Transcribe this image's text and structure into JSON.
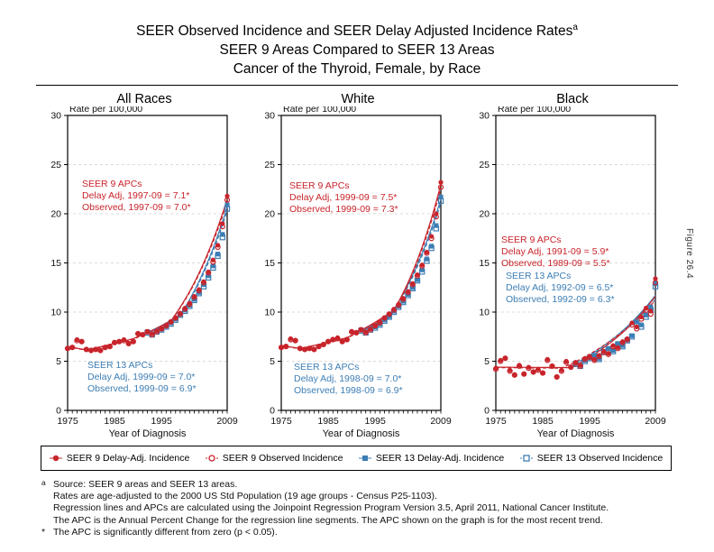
{
  "title": {
    "line1": "SEER Observed Incidence and SEER Delay Adjusted Incidence Rates",
    "superscript": "a",
    "line2": "SEER 9 Areas Compared to SEER 13 Areas",
    "line3": "Cancer of the Thyroid, Female, by Race"
  },
  "figure_label": "Figure 26.4",
  "colors": {
    "seer9": "#C8242B",
    "seer13": "#3D7EB4",
    "grid": "#CFCFCF",
    "axis": "#000000"
  },
  "axis": {
    "y_label": "Rate per 100,000",
    "x_label": "Year of Diagnosis",
    "y_ticks": [
      0,
      5,
      10,
      15,
      20,
      25,
      30
    ],
    "x_tick_labels": [
      1975,
      1985,
      1995,
      2009
    ],
    "x_range": [
      1975,
      2009
    ],
    "y_range": [
      0,
      30
    ]
  },
  "legend": [
    {
      "label": "SEER 9 Delay-Adj. Incidence",
      "marker": "filled-circle",
      "color": "#C8242B"
    },
    {
      "label": "SEER 9 Observed Incidence",
      "marker": "open-circle",
      "color": "#C8242B"
    },
    {
      "label": "SEER 13 Delay-Adj. Incidence",
      "marker": "filled-square",
      "color": "#3D7EB4"
    },
    {
      "label": "SEER 13 Observed Incidence",
      "marker": "open-square",
      "color": "#3D7EB4"
    }
  ],
  "footnotes": {
    "source_marker": "a",
    "lines": [
      "Source: SEER 9 areas and SEER 13 areas.",
      "Rates are age-adjusted to the 2000 US Std Population (19 age groups - Census P25-1103).",
      "Regression lines and APCs are calculated using the Joinpoint Regression Program Version 3.5, April 2011, National Cancer Institute.",
      "The APC is the Annual Percent Change for the regression line segments. The APC shown on the graph is for the most recent trend."
    ],
    "star_marker": "*",
    "star_line": "The APC is significantly different from zero (p < 0.05)."
  },
  "chart_data": [
    {
      "type": "scatter",
      "title": "All Races",
      "xlabel": "Year of Diagnosis",
      "ylabel": "Rate per 100,000",
      "xlim": [
        1975,
        2009
      ],
      "ylim": [
        0,
        30
      ],
      "annotations": {
        "seer9": [
          "SEER 9 APCs",
          "Delay Adj, 1997-09 = 7.1*",
          "Observed, 1997-09 = 7.0*"
        ],
        "seer13": [
          "SEER 13 APCs",
          "Delay Adj, 1999-09 = 7.0*",
          "Observed, 1999-09 = 6.9*"
        ]
      },
      "series": [
        {
          "name": "SEER 9 Delay-Adj. Incidence",
          "start_year": 1975,
          "values": [
            6.3,
            6.4,
            7.2,
            7.0,
            6.2,
            6.1,
            6.2,
            6.1,
            6.4,
            6.5,
            6.9,
            7.0,
            7.2,
            6.8,
            7.0,
            7.8,
            7.7,
            8.0,
            7.8,
            8.1,
            8.3,
            8.7,
            9.0,
            9.4,
            9.9,
            10.4,
            10.9,
            11.6,
            12.3,
            13.1,
            14.1,
            15.3,
            16.8,
            19.0,
            21.8
          ],
          "trend": [
            [
              1975,
              6.5
            ],
            [
              1979,
              6.15
            ],
            [
              1989,
              7.3
            ],
            [
              1997,
              9.1
            ],
            [
              2009,
              21.5
            ]
          ]
        },
        {
          "name": "SEER 9 Observed Incidence",
          "start_year": 1975,
          "values": [
            6.3,
            6.4,
            7.1,
            7.0,
            6.2,
            6.1,
            6.2,
            6.1,
            6.4,
            6.5,
            6.9,
            7.0,
            7.1,
            6.8,
            7.0,
            7.8,
            7.7,
            8.0,
            7.7,
            8.0,
            8.3,
            8.6,
            9.0,
            9.4,
            9.8,
            10.3,
            10.8,
            11.5,
            12.2,
            13.0,
            14.0,
            15.1,
            16.6,
            18.7,
            21.4
          ],
          "trend": [
            [
              1975,
              6.5
            ],
            [
              1979,
              6.1
            ],
            [
              1989,
              7.25
            ],
            [
              1997,
              9.05
            ],
            [
              2009,
              21.2
            ]
          ]
        },
        {
          "name": "SEER 13 Delay-Adj. Incidence",
          "start_year": 1992,
          "values": [
            8.0,
            7.8,
            8.1,
            8.3,
            8.6,
            8.9,
            9.3,
            9.8,
            10.2,
            10.7,
            11.3,
            12.0,
            12.8,
            13.7,
            14.7,
            15.9,
            17.9,
            20.9
          ],
          "trend": [
            [
              1992,
              7.9
            ],
            [
              1999,
              9.7
            ],
            [
              2009,
              20.7
            ]
          ]
        },
        {
          "name": "SEER 13 Observed Incidence",
          "start_year": 1992,
          "values": [
            7.9,
            7.7,
            8.0,
            8.2,
            8.5,
            8.8,
            9.2,
            9.7,
            10.1,
            10.6,
            11.2,
            11.9,
            12.6,
            13.5,
            14.5,
            15.7,
            17.6,
            20.5
          ],
          "trend": [
            [
              1992,
              7.85
            ],
            [
              1999,
              9.6
            ],
            [
              2009,
              20.3
            ]
          ]
        }
      ]
    },
    {
      "type": "scatter",
      "title": "White",
      "xlabel": "Year of Diagnosis",
      "ylabel": "Rate per 100,000",
      "xlim": [
        1975,
        2009
      ],
      "ylim": [
        0,
        30
      ],
      "annotations": {
        "seer9": [
          "SEER 9 APCs",
          "Delay Adj, 1999-09 = 7.5*",
          "Observed, 1999-09 = 7.3*"
        ],
        "seer13": [
          "SEER 13 APCs",
          "Delay Adj, 1998-09 = 7.0*",
          "Observed, 1998-09 = 6.9*"
        ]
      },
      "series": [
        {
          "name": "SEER 9 Delay-Adj. Incidence",
          "start_year": 1975,
          "values": [
            6.4,
            6.5,
            7.3,
            7.1,
            6.3,
            6.2,
            6.3,
            6.2,
            6.5,
            6.7,
            7.0,
            7.2,
            7.4,
            7.0,
            7.2,
            8.0,
            7.9,
            8.2,
            8.0,
            8.3,
            8.6,
            9.0,
            9.4,
            9.8,
            10.3,
            10.8,
            11.4,
            12.1,
            12.9,
            13.8,
            14.8,
            16.1,
            17.7,
            20.0,
            23.2
          ],
          "trend": [
            [
              1975,
              6.6
            ],
            [
              1979,
              6.3
            ],
            [
              1989,
              7.4
            ],
            [
              1999,
              10.2
            ],
            [
              2009,
              23.0
            ]
          ]
        },
        {
          "name": "SEER 9 Observed Incidence",
          "start_year": 1975,
          "values": [
            6.4,
            6.5,
            7.2,
            7.1,
            6.3,
            6.2,
            6.3,
            6.2,
            6.5,
            6.7,
            7.0,
            7.2,
            7.3,
            7.0,
            7.2,
            8.0,
            7.9,
            8.2,
            7.9,
            8.2,
            8.6,
            8.9,
            9.4,
            9.8,
            10.2,
            10.7,
            11.3,
            12.0,
            12.8,
            13.7,
            14.7,
            16.0,
            17.5,
            19.7,
            22.7
          ],
          "trend": [
            [
              1975,
              6.6
            ],
            [
              1979,
              6.25
            ],
            [
              1989,
              7.35
            ],
            [
              1999,
              10.1
            ],
            [
              2009,
              22.6
            ]
          ]
        },
        {
          "name": "SEER 13 Delay-Adj. Incidence",
          "start_year": 1992,
          "values": [
            8.2,
            8.0,
            8.3,
            8.5,
            8.8,
            9.2,
            9.6,
            10.1,
            10.6,
            11.1,
            11.8,
            12.5,
            13.3,
            14.3,
            15.4,
            16.7,
            18.8,
            21.7
          ],
          "trend": [
            [
              1992,
              8.1
            ],
            [
              1998,
              9.5
            ],
            [
              2009,
              21.5
            ]
          ]
        },
        {
          "name": "SEER 13 Observed Incidence",
          "start_year": 1992,
          "values": [
            8.1,
            7.9,
            8.2,
            8.4,
            8.7,
            9.1,
            9.5,
            10.0,
            10.5,
            11.0,
            11.7,
            12.4,
            13.2,
            14.1,
            15.2,
            16.5,
            18.5,
            21.3
          ],
          "trend": [
            [
              1992,
              8.05
            ],
            [
              1998,
              9.4
            ],
            [
              2009,
              21.1
            ]
          ]
        }
      ]
    },
    {
      "type": "scatter",
      "title": "Black",
      "xlabel": "Year of Diagnosis",
      "ylabel": "Rate per 100,000",
      "xlim": [
        1975,
        2009
      ],
      "ylim": [
        0,
        30
      ],
      "annotations": {
        "seer9": [
          "SEER 9 APCs",
          "Delay Adj, 1991-09 = 5.9*",
          "Observed, 1989-09 = 5.5*"
        ],
        "seer13": [
          "SEER 13 APCs",
          "Delay Adj, 1992-09 = 6.5*",
          "Observed, 1992-09 = 6.3*"
        ]
      },
      "series": [
        {
          "name": "SEER 9 Delay-Adj. Incidence",
          "start_year": 1975,
          "values": [
            4.3,
            5.1,
            5.3,
            4.1,
            3.6,
            4.6,
            3.7,
            4.4,
            3.9,
            4.2,
            3.8,
            5.2,
            4.5,
            3.4,
            4.1,
            5.0,
            4.4,
            4.9,
            4.6,
            5.3,
            5.5,
            5.2,
            5.6,
            6.0,
            5.8,
            6.6,
            6.4,
            7.0,
            7.3,
            8.9,
            8.5,
            9.5,
            10.4,
            10.1,
            13.4
          ],
          "trend": [
            [
              1975,
              4.4
            ],
            [
              1991,
              4.35
            ],
            [
              2009,
              11.6
            ]
          ]
        },
        {
          "name": "SEER 9 Observed Incidence",
          "start_year": 1975,
          "values": [
            4.2,
            5.0,
            5.3,
            4.0,
            3.6,
            4.5,
            3.7,
            4.3,
            3.9,
            4.1,
            3.8,
            5.1,
            4.5,
            3.4,
            4.0,
            4.9,
            4.4,
            4.8,
            4.5,
            5.2,
            5.4,
            5.1,
            5.5,
            5.9,
            5.7,
            6.5,
            6.3,
            6.9,
            7.2,
            8.7,
            8.3,
            9.3,
            10.2,
            9.8,
            13.0
          ],
          "trend": [
            [
              1975,
              4.35
            ],
            [
              1989,
              4.3
            ],
            [
              2009,
              11.2
            ]
          ]
        },
        {
          "name": "SEER 13 Delay-Adj. Incidence",
          "start_year": 1992,
          "values": [
            4.8,
            4.6,
            5.1,
            5.4,
            5.6,
            5.3,
            6.0,
            6.3,
            6.1,
            6.8,
            6.6,
            7.2,
            7.6,
            9.0,
            8.7,
            9.7,
            10.5,
            12.9
          ],
          "trend": [
            [
              1992,
              4.8
            ],
            [
              2009,
              11.7
            ]
          ]
        },
        {
          "name": "SEER 13 Observed Incidence",
          "start_year": 1992,
          "values": [
            4.7,
            4.5,
            5.0,
            5.3,
            5.5,
            5.2,
            5.9,
            6.2,
            6.0,
            6.7,
            6.5,
            7.1,
            7.5,
            8.8,
            8.5,
            9.5,
            10.2,
            12.6
          ],
          "trend": [
            [
              1992,
              4.75
            ],
            [
              2009,
              11.3
            ]
          ]
        }
      ]
    }
  ]
}
